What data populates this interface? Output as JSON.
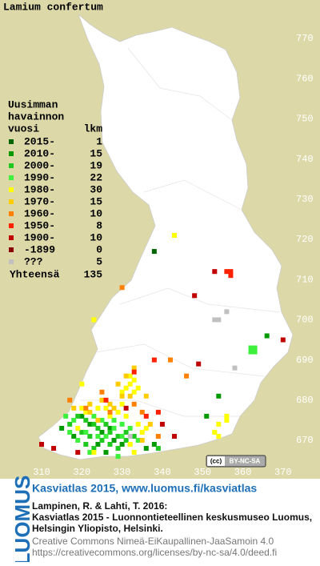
{
  "title": "Lamium confertum",
  "legend": {
    "header": [
      "Uusimman",
      "havainnon",
      "vuosi"
    ],
    "count_header": "lkm",
    "rows": [
      {
        "label": "2015-",
        "count": 1,
        "color": "#006400",
        "cells": [
          [
            338,
            717
          ]
        ]
      },
      {
        "label": "2010-",
        "count": 15,
        "color": "#009a00",
        "cells": [
          [
            366,
            696
          ],
          [
            354,
            681
          ],
          [
            351,
            676
          ],
          [
            320,
            676
          ],
          [
            322,
            674
          ],
          [
            325,
            672
          ],
          [
            328,
            670
          ],
          [
            330,
            669
          ],
          [
            315,
            673
          ],
          [
            318,
            671
          ],
          [
            326,
            667
          ],
          [
            336,
            668
          ],
          [
            338,
            669
          ],
          [
            327,
            673
          ],
          [
            324,
            669
          ]
        ]
      },
      {
        "label": "2000-",
        "count": 19,
        "color": "#1fc81f",
        "cells": [
          [
            319,
            676
          ],
          [
            321,
            675
          ],
          [
            323,
            674
          ],
          [
            324,
            673
          ],
          [
            326,
            674
          ],
          [
            327,
            672
          ],
          [
            329,
            671
          ],
          [
            331,
            670
          ],
          [
            320,
            672
          ],
          [
            322,
            671
          ],
          [
            325,
            670
          ],
          [
            327,
            669
          ],
          [
            329,
            668
          ],
          [
            331,
            672
          ],
          [
            333,
            671
          ],
          [
            317,
            674
          ],
          [
            321,
            669
          ],
          [
            323,
            668
          ],
          [
            339,
            668
          ]
        ]
      },
      {
        "label": "1990-",
        "count": 22,
        "color": "#3cf03c",
        "cells": [
          [
            362,
            693
          ],
          [
            363,
            693
          ],
          [
            362,
            692
          ],
          [
            363,
            692
          ],
          [
            316,
            676
          ],
          [
            318,
            675
          ],
          [
            323,
            676
          ],
          [
            325,
            675
          ],
          [
            328,
            675
          ],
          [
            330,
            674
          ],
          [
            332,
            673
          ],
          [
            319,
            670
          ],
          [
            321,
            672
          ],
          [
            324,
            671
          ],
          [
            326,
            671
          ],
          [
            328,
            673
          ],
          [
            330,
            671
          ],
          [
            332,
            669
          ],
          [
            334,
            670
          ],
          [
            317,
            672
          ],
          [
            329,
            666
          ],
          [
            322,
            667
          ]
        ]
      },
      {
        "label": "1980-",
        "count": 30,
        "color": "#ffff00",
        "cells": [
          [
            343,
            721
          ],
          [
            323,
            700
          ],
          [
            320,
            684
          ],
          [
            333,
            685
          ],
          [
            334,
            683
          ],
          [
            332,
            684
          ],
          [
            331,
            683
          ],
          [
            333,
            682
          ],
          [
            324,
            678
          ],
          [
            326,
            678
          ],
          [
            330,
            679
          ],
          [
            356,
            676
          ],
          [
            354,
            674
          ],
          [
            356,
            675
          ],
          [
            354,
            671
          ],
          [
            353,
            672
          ],
          [
            323,
            667
          ],
          [
            332,
            669
          ],
          [
            333,
            667
          ],
          [
            319,
            673
          ],
          [
            321,
            677
          ],
          [
            329,
            677
          ],
          [
            331,
            676
          ],
          [
            334,
            674
          ],
          [
            335,
            672
          ],
          [
            327,
            676
          ],
          [
            320,
            678
          ],
          [
            330,
            682
          ],
          [
            332,
            686
          ],
          [
            336,
            673
          ]
        ]
      },
      {
        "label": "1970-",
        "count": 15,
        "color": "#ffcc00",
        "cells": [
          [
            330,
            681
          ],
          [
            332,
            681
          ],
          [
            333,
            688
          ],
          [
            328,
            678
          ],
          [
            322,
            679
          ],
          [
            325,
            680
          ],
          [
            337,
            674
          ],
          [
            327,
            679
          ],
          [
            324,
            675
          ],
          [
            336,
            681
          ],
          [
            329,
            684
          ],
          [
            331,
            686
          ],
          [
            318,
            678
          ],
          [
            335,
            670
          ],
          [
            322,
            677
          ]
        ]
      },
      {
        "label": "1960-",
        "count": 10,
        "color": "#ff8000",
        "cells": [
          [
            330,
            708
          ],
          [
            342,
            690
          ],
          [
            346,
            686
          ],
          [
            321,
            678
          ],
          [
            327,
            677
          ],
          [
            335,
            677
          ],
          [
            333,
            679
          ],
          [
            317,
            680
          ],
          [
            339,
            671
          ],
          [
            325,
            682
          ]
        ]
      },
      {
        "label": "1950-",
        "count": 8,
        "color": "#ff2000",
        "cells": [
          [
            356,
            712
          ],
          [
            357,
            711
          ],
          [
            357,
            712
          ],
          [
            338,
            690
          ],
          [
            333,
            687
          ],
          [
            326,
            680
          ],
          [
            339,
            677
          ],
          [
            336,
            676
          ]
        ]
      },
      {
        "label": "1900-",
        "count": 10,
        "color": "#c00000",
        "cells": [
          [
            353,
            712
          ],
          [
            348,
            706
          ],
          [
            370,
            695
          ],
          [
            349,
            689
          ],
          [
            310,
            669
          ],
          [
            343,
            671
          ],
          [
            313,
            668
          ],
          [
            319,
            667
          ],
          [
            331,
            678
          ],
          [
            340,
            674
          ]
        ]
      },
      {
        "label": "-1899",
        "count": 0,
        "color": "#8b0000",
        "cells": []
      },
      {
        "label": "???",
        "count": 5,
        "color": "#c0c0c0",
        "cells": [
          [
            356,
            702
          ],
          [
            353,
            700
          ],
          [
            354,
            700
          ],
          [
            358,
            688
          ],
          [
            332,
            671
          ]
        ]
      }
    ],
    "total_label": "Yhteensä",
    "total": 135
  },
  "map": {
    "xticks": [
      310,
      320,
      330,
      340,
      350,
      360,
      370
    ],
    "yticks": [
      670,
      680,
      690,
      700,
      710,
      720,
      730,
      740,
      750,
      760,
      770
    ]
  },
  "cc_badge": [
    "(cc)",
    "BY-NC-SA"
  ],
  "footer": {
    "logo": "LUOMUS",
    "link": "Kasviatlas 2015, www.luomus.fi/kasviatlas",
    "citation": [
      "Lampinen, R. & Lahti, T. 2016:",
      "Kasviatlas 2015 - Luonnontieteellinen keskusmuseo Luomus,",
      "Helsingin Yliopisto, Helsinki."
    ],
    "license": [
      "Creative Commons Nimeä-EiKaupallinen-JaaSamoin 4.0",
      "https://creativecommons.org/licenses/by-nc-sa/4.0/deed.fi"
    ]
  }
}
